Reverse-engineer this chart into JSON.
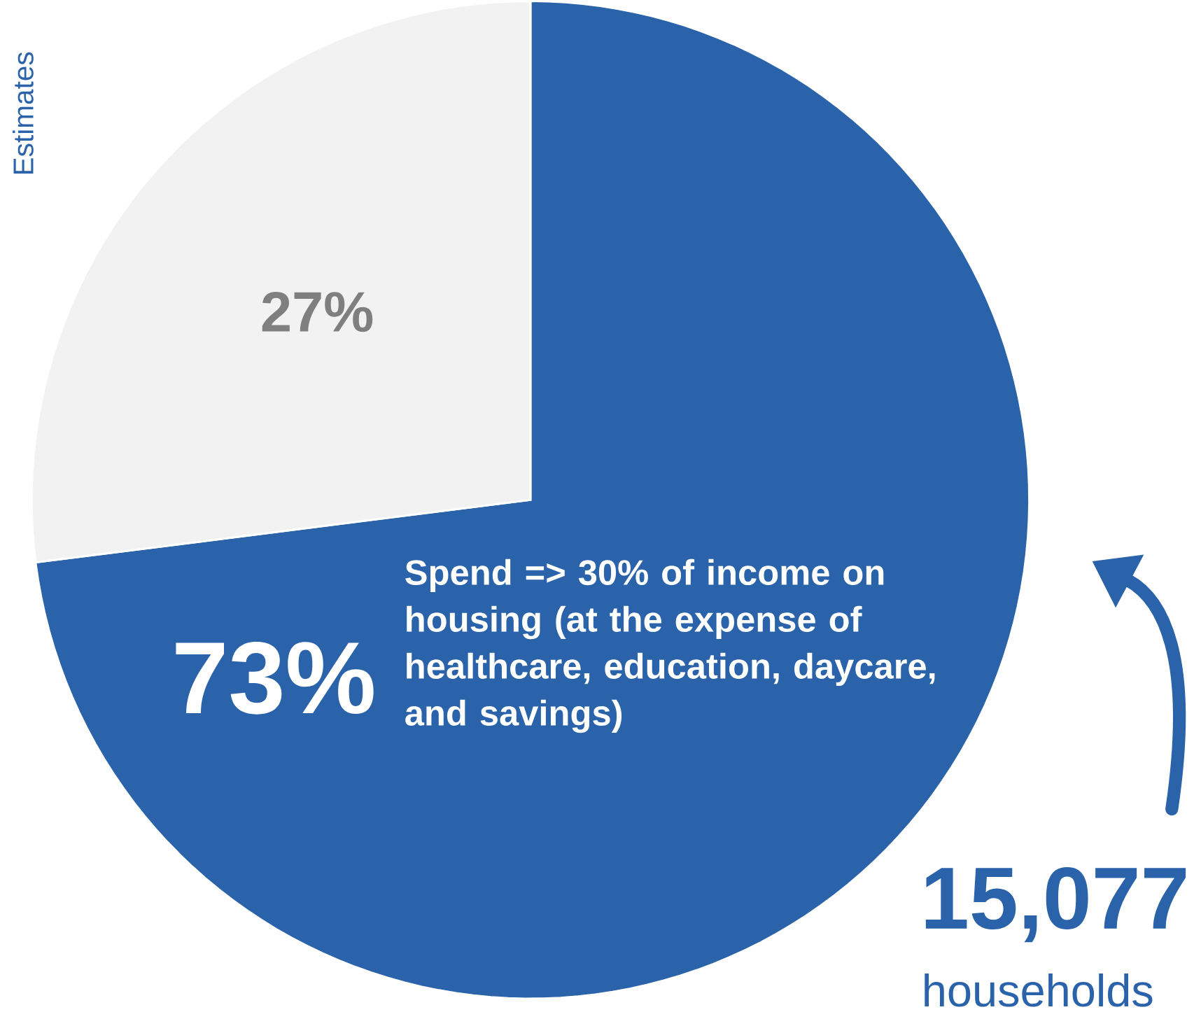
{
  "chart_data": {
    "type": "pie",
    "categories": [
      "Spend => 30% of income on housing (at the expense of healthcare, education, daycare, and savings)",
      null
    ],
    "values": [
      73,
      27
    ],
    "value_labels": [
      "73%",
      "27%"
    ],
    "colors": [
      "#2a63aa",
      "#f2f2f2"
    ],
    "annotations": [
      "15,077",
      "households",
      "Estimates"
    ]
  }
}
